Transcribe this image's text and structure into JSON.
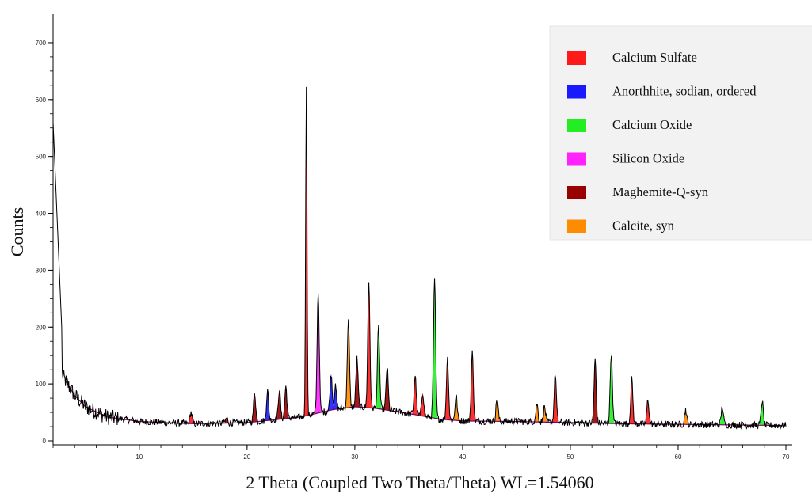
{
  "chart_data": {
    "type": "line",
    "xlabel": "2 Theta (Coupled Two Theta/Theta) WL=1.54060",
    "ylabel": "Counts",
    "xlim": [
      2,
      70
    ],
    "ylim": [
      0,
      750
    ],
    "x_ticks": [
      10,
      20,
      30,
      40,
      50,
      60,
      70
    ],
    "y_ticks": [
      0,
      100,
      200,
      300,
      400,
      500,
      600,
      700
    ],
    "grid": false,
    "legend_position": "top-right",
    "background": {
      "x": [
        2,
        2.5,
        3,
        4,
        5,
        7,
        10,
        15,
        20,
        25,
        28,
        30,
        32,
        35,
        38,
        40,
        45,
        50,
        55,
        60,
        65,
        70
      ],
      "y": [
        180,
        140,
        110,
        80,
        60,
        42,
        34,
        30,
        32,
        42,
        55,
        60,
        57,
        48,
        38,
        35,
        34,
        32,
        30,
        29,
        28,
        27
      ]
    },
    "peaks": [
      {
        "x": 14.8,
        "y": 50,
        "phase": 0
      },
      {
        "x": 18.1,
        "y": 40,
        "phase": 4
      },
      {
        "x": 20.7,
        "y": 85,
        "phase": 4
      },
      {
        "x": 21.9,
        "y": 88,
        "phase": 1
      },
      {
        "x": 23.0,
        "y": 90,
        "phase": 4
      },
      {
        "x": 23.6,
        "y": 95,
        "phase": 4
      },
      {
        "x": 25.5,
        "y": 628,
        "phase": 0
      },
      {
        "x": 26.6,
        "y": 262,
        "phase": 3
      },
      {
        "x": 27.8,
        "y": 118,
        "phase": 1
      },
      {
        "x": 28.2,
        "y": 95,
        "phase": 1
      },
      {
        "x": 29.4,
        "y": 213,
        "phase": 5
      },
      {
        "x": 30.2,
        "y": 145,
        "phase": 4
      },
      {
        "x": 31.3,
        "y": 280,
        "phase": 0
      },
      {
        "x": 32.2,
        "y": 200,
        "phase": 2
      },
      {
        "x": 33.0,
        "y": 130,
        "phase": 4
      },
      {
        "x": 35.6,
        "y": 115,
        "phase": 0
      },
      {
        "x": 36.3,
        "y": 85,
        "phase": 0
      },
      {
        "x": 37.4,
        "y": 282,
        "phase": 2
      },
      {
        "x": 38.6,
        "y": 145,
        "phase": 0
      },
      {
        "x": 39.4,
        "y": 80,
        "phase": 5
      },
      {
        "x": 40.9,
        "y": 155,
        "phase": 0
      },
      {
        "x": 43.2,
        "y": 75,
        "phase": 5
      },
      {
        "x": 46.9,
        "y": 65,
        "phase": 5
      },
      {
        "x": 47.6,
        "y": 60,
        "phase": 5
      },
      {
        "x": 48.6,
        "y": 118,
        "phase": 0
      },
      {
        "x": 52.3,
        "y": 142,
        "phase": 4
      },
      {
        "x": 53.8,
        "y": 155,
        "phase": 2
      },
      {
        "x": 55.7,
        "y": 108,
        "phase": 0
      },
      {
        "x": 57.2,
        "y": 72,
        "phase": 0
      },
      {
        "x": 60.7,
        "y": 55,
        "phase": 5
      },
      {
        "x": 64.1,
        "y": 60,
        "phase": 2
      },
      {
        "x": 67.8,
        "y": 70,
        "phase": 2
      }
    ],
    "legend": [
      {
        "name": "Calcium Sulfate",
        "color": "#ff1a1a"
      },
      {
        "name": "Anorthhite, sodian, ordered",
        "color": "#1a1aff"
      },
      {
        "name": "Calcium Oxide",
        "color": "#22ee22"
      },
      {
        "name": "Silicon Oxide",
        "color": "#ff22ff"
      },
      {
        "name": "Maghemite-Q-syn",
        "color": "#990000"
      },
      {
        "name": "Calcite, syn",
        "color": "#ff8c00"
      }
    ],
    "pattern_color": "#000000",
    "background_color": "#7a0066"
  }
}
